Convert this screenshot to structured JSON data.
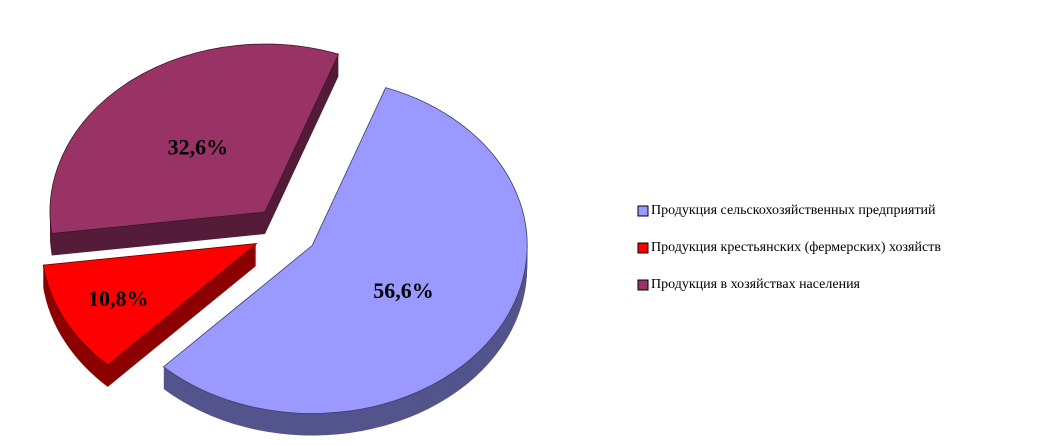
{
  "chart_data": {
    "type": "pie",
    "categories": [
      "Продукция сельскохозяйственных предприятий",
      "Продукция крестьянских (фермерских) хозяйств",
      "Продукция в хозяйствах населения"
    ],
    "values": [
      56.6,
      10.8,
      32.6
    ],
    "value_labels": [
      "56,6%",
      "10,8%",
      "32,6%"
    ],
    "colors": [
      "#9999ff",
      "#ff0000",
      "#993366"
    ],
    "legend": "right"
  }
}
